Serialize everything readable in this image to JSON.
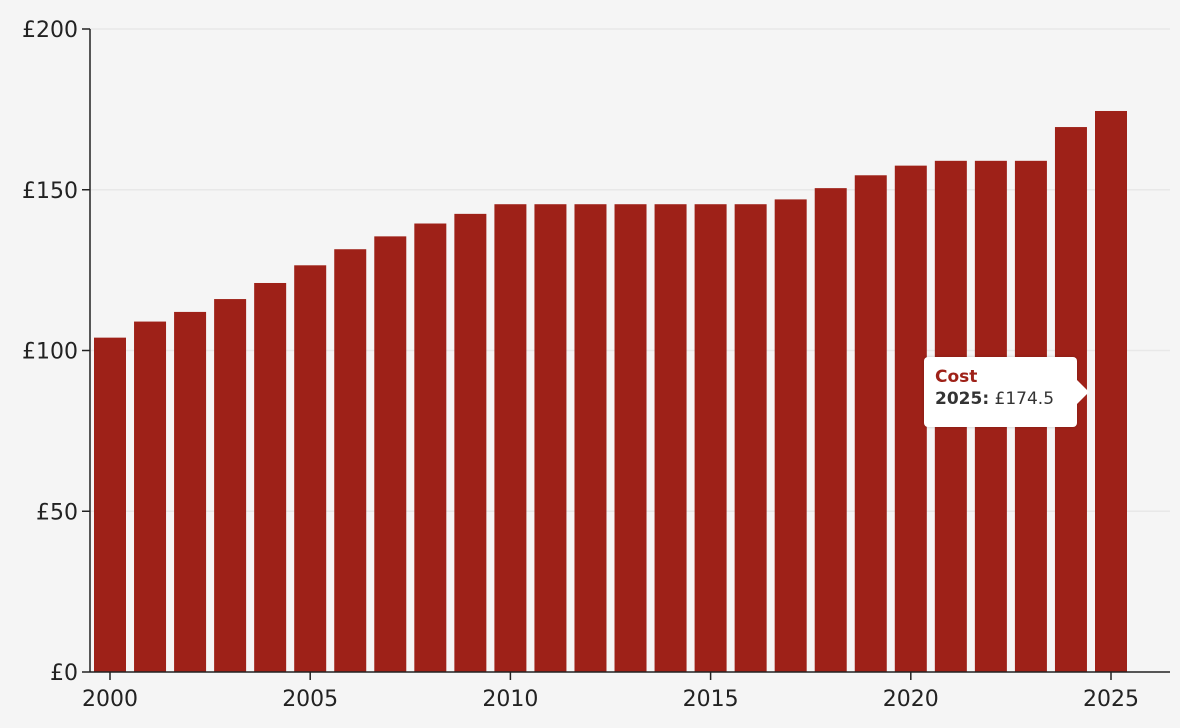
{
  "chart_data": {
    "type": "bar",
    "title": "",
    "xlabel": "",
    "ylabel": "",
    "categories": [
      "2000",
      "2001",
      "2002",
      "2003",
      "2004",
      "2005",
      "2006",
      "2007",
      "2008",
      "2009",
      "2010",
      "2011",
      "2012",
      "2013",
      "2014",
      "2015",
      "2016",
      "2017",
      "2018",
      "2019",
      "2020",
      "2021",
      "2022",
      "2023",
      "2024",
      "2025"
    ],
    "series": [
      {
        "name": "Cost",
        "values": [
          104,
          109,
          112,
          116,
          121,
          126.5,
          131.5,
          135.5,
          139.5,
          142.5,
          145.5,
          145.5,
          145.5,
          145.5,
          145.5,
          145.5,
          145.5,
          147,
          150.5,
          154.5,
          157.5,
          159,
          159,
          159,
          169.5,
          174.5
        ]
      }
    ],
    "ylim": [
      0,
      200
    ],
    "yticks": [
      0,
      50,
      100,
      150,
      200
    ],
    "ytick_labels": [
      "£0",
      "£50",
      "£100",
      "£150",
      "£200"
    ],
    "xtick_labels": [
      "2000",
      "2005",
      "2010",
      "2015",
      "2020",
      "2025"
    ],
    "grid": true,
    "bar_color": "#9e2118"
  },
  "tooltip": {
    "series": "Cost",
    "year": "2025:",
    "value": "£174.5"
  }
}
